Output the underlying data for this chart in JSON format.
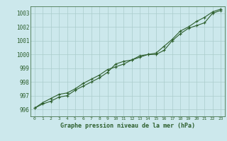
{
  "title": "Graphe pression niveau de la mer (hPa)",
  "background_color": "#cce8ec",
  "grid_color": "#aacccc",
  "line_color": "#2d5f2d",
  "x_labels": [
    "0",
    "1",
    "2",
    "3",
    "4",
    "5",
    "6",
    "7",
    "8",
    "9",
    "10",
    "11",
    "12",
    "13",
    "14",
    "15",
    "16",
    "17",
    "18",
    "19",
    "20",
    "21",
    "22",
    "23"
  ],
  "ylim": [
    995.5,
    1003.5
  ],
  "yticks": [
    996,
    997,
    998,
    999,
    1000,
    1001,
    1002,
    1003
  ],
  "series1": [
    996.1,
    996.4,
    996.6,
    996.9,
    997.0,
    997.4,
    997.7,
    998.0,
    998.3,
    998.7,
    999.3,
    999.5,
    999.6,
    999.9,
    1000.0,
    1000.0,
    1000.3,
    1001.0,
    1001.5,
    1001.9,
    1002.1,
    1002.3,
    1003.0,
    1003.2
  ],
  "series2": [
    996.1,
    996.5,
    996.8,
    997.1,
    997.2,
    997.5,
    997.9,
    998.2,
    998.5,
    998.9,
    999.1,
    999.3,
    999.6,
    999.8,
    1000.0,
    1000.1,
    1000.6,
    1001.1,
    1001.7,
    1002.0,
    1002.4,
    1002.7,
    1003.1,
    1003.3
  ]
}
